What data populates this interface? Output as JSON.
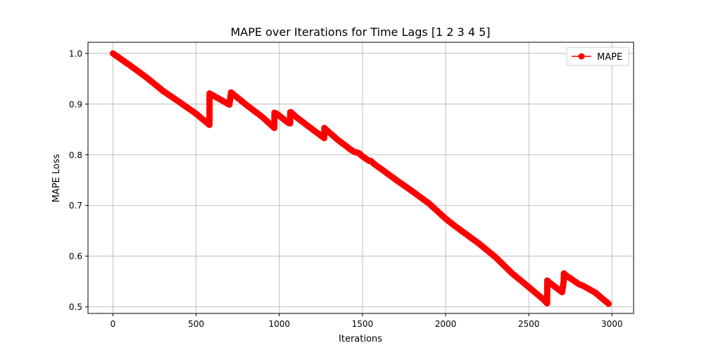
{
  "chart_data": {
    "type": "line",
    "title": "MAPE over Iterations for Time Lags [1 2 3 4 5]",
    "xlabel": "Iterations",
    "ylabel": "MAPE Loss",
    "xlim": [
      -150,
      3130
    ],
    "ylim": [
      0.487,
      1.022
    ],
    "x_ticks": [
      0,
      500,
      1000,
      1500,
      2000,
      2500,
      3000
    ],
    "x_tick_labels": [
      "0",
      "500",
      "1000",
      "1500",
      "2000",
      "2500",
      "3000"
    ],
    "y_ticks": [
      0.5,
      0.6,
      0.7,
      0.8,
      0.9,
      1.0
    ],
    "y_tick_labels": [
      "0.5",
      "0.6",
      "0.7",
      "0.8",
      "0.9",
      "1.0"
    ],
    "grid": true,
    "legend": {
      "position": "upper-right",
      "entries": [
        "MAPE"
      ]
    },
    "series": [
      {
        "name": "MAPE",
        "color": "#ff0000",
        "marker": "circle",
        "x": [
          0,
          100,
          200,
          290,
          300,
          310,
          400,
          500,
          580,
          581,
          700,
          710,
          800,
          900,
          970,
          971,
          985,
          1050,
          1065,
          1066,
          1070,
          1100,
          1200,
          1270,
          1271,
          1280,
          1350,
          1430,
          1450,
          1480,
          1500,
          1540,
          1550,
          1570,
          1600,
          1700,
          1800,
          1900,
          2000,
          2050,
          2100,
          2200,
          2300,
          2400,
          2500,
          2590,
          2610,
          2611,
          2620,
          2700,
          2710,
          2711,
          2720,
          2800,
          2830,
          2900,
          2980
        ],
        "y": [
          1.0,
          0.977,
          0.953,
          0.929,
          0.926,
          0.924,
          0.904,
          0.881,
          0.859,
          0.921,
          0.899,
          0.923,
          0.899,
          0.874,
          0.853,
          0.883,
          0.881,
          0.864,
          0.862,
          0.884,
          0.884,
          0.875,
          0.85,
          0.833,
          0.853,
          0.85,
          0.83,
          0.81,
          0.806,
          0.803,
          0.797,
          0.788,
          0.788,
          0.782,
          0.775,
          0.751,
          0.728,
          0.704,
          0.674,
          0.661,
          0.649,
          0.625,
          0.598,
          0.566,
          0.539,
          0.514,
          0.507,
          0.552,
          0.549,
          0.529,
          0.551,
          0.566,
          0.563,
          0.545,
          0.541,
          0.528,
          0.506
        ]
      }
    ]
  }
}
